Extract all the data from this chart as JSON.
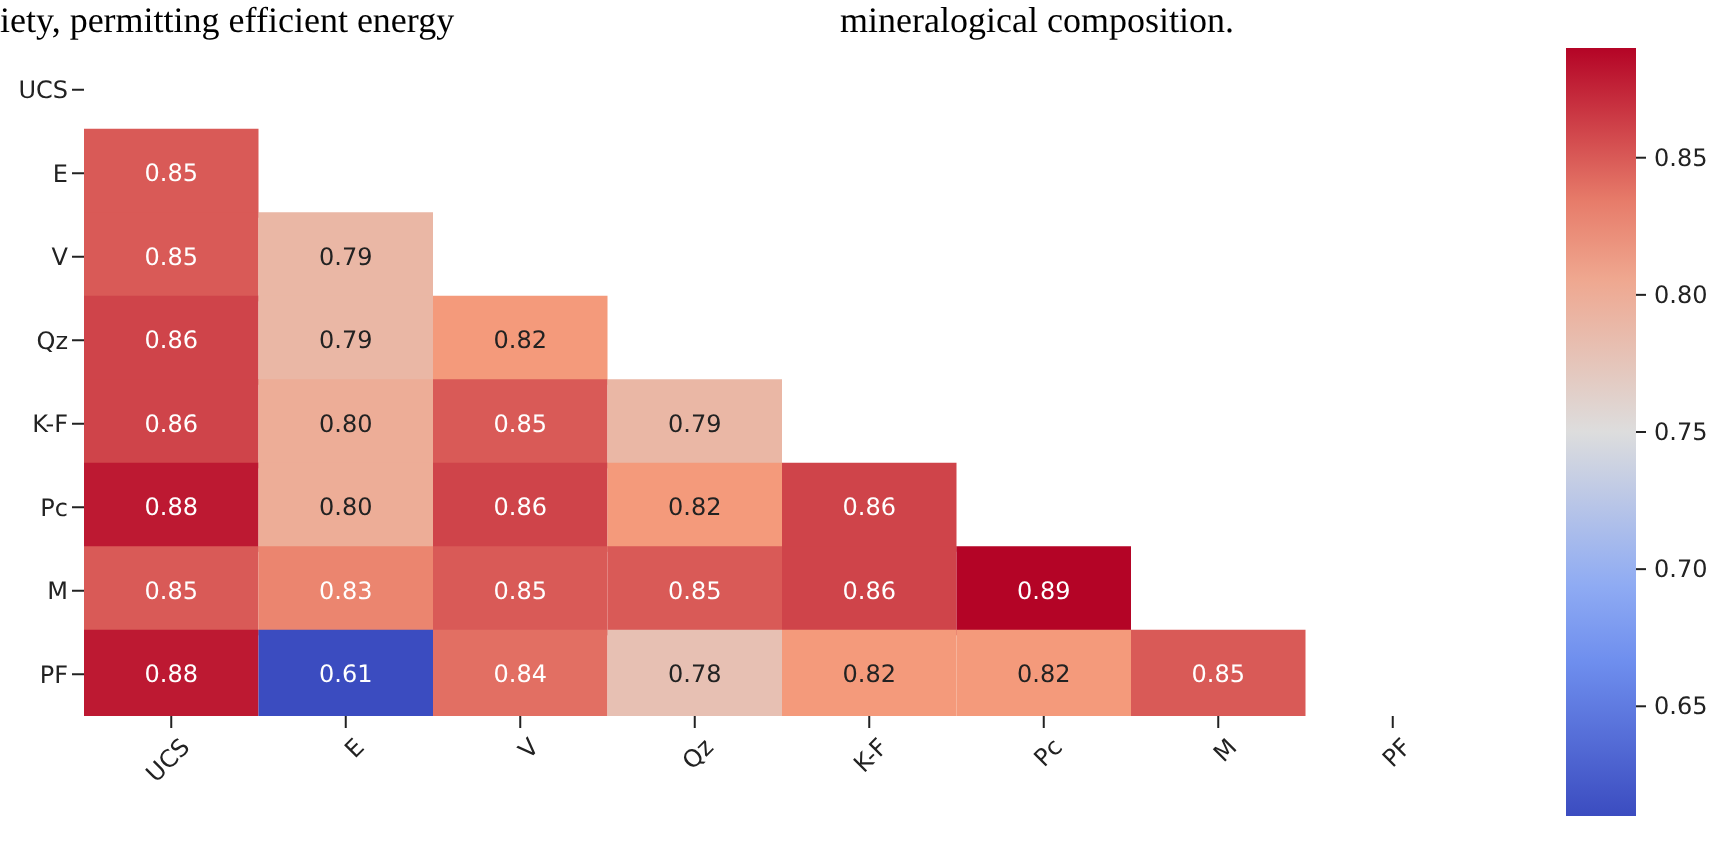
{
  "chart_data": {
    "type": "heatmap",
    "annotations": [
      "iety, permitting efficient energy",
      "mineralogical composition."
    ],
    "categories": [
      "UCS",
      "E",
      "V",
      "Qz",
      "K-F",
      "Pc",
      "M",
      "PF"
    ],
    "y_categories": [
      "UCS",
      "E",
      "V",
      "Qz",
      "K-F",
      "Pc",
      "M",
      "PF"
    ],
    "cells": [
      [
        null,
        null,
        null,
        null,
        null,
        null,
        null,
        null
      ],
      [
        0.85,
        null,
        null,
        null,
        null,
        null,
        null,
        null
      ],
      [
        0.85,
        0.79,
        null,
        null,
        null,
        null,
        null,
        null
      ],
      [
        0.86,
        0.79,
        0.82,
        null,
        null,
        null,
        null,
        null
      ],
      [
        0.86,
        0.8,
        0.85,
        0.79,
        null,
        null,
        null,
        null
      ],
      [
        0.88,
        0.8,
        0.86,
        0.82,
        0.86,
        null,
        null,
        null
      ],
      [
        0.85,
        0.83,
        0.85,
        0.85,
        0.86,
        0.89,
        null,
        null
      ],
      [
        0.88,
        0.61,
        0.84,
        0.78,
        0.82,
        0.82,
        0.85,
        null
      ]
    ],
    "data_labels": true,
    "cell_labels": [
      [
        null,
        null,
        null,
        null,
        null,
        null,
        null,
        null
      ],
      [
        "0.85",
        null,
        null,
        null,
        null,
        null,
        null,
        null
      ],
      [
        "0.85",
        "0.79",
        null,
        null,
        null,
        null,
        null,
        null
      ],
      [
        "0.86",
        "0.79",
        "0.82",
        null,
        null,
        null,
        null,
        null
      ],
      [
        "0.86",
        "0.80",
        "0.85",
        "0.79",
        null,
        null,
        null,
        null
      ],
      [
        "0.88",
        "0.80",
        "0.86",
        "0.82",
        "0.86",
        null,
        null,
        null
      ],
      [
        "0.85",
        "0.83",
        "0.85",
        "0.85",
        "0.86",
        "0.89",
        null,
        null
      ],
      [
        "0.88",
        "0.61",
        "0.84",
        "0.78",
        "0.82",
        "0.82",
        "0.85",
        null
      ]
    ],
    "clim": [
      0.61,
      0.89
    ],
    "cticks": [
      0.65,
      {
        "value": 0.7,
        "label": "0.70"
      },
      0.75,
      {
        "value": 0.8,
        "label": "0.80"
      },
      0.85
    ]
  }
}
